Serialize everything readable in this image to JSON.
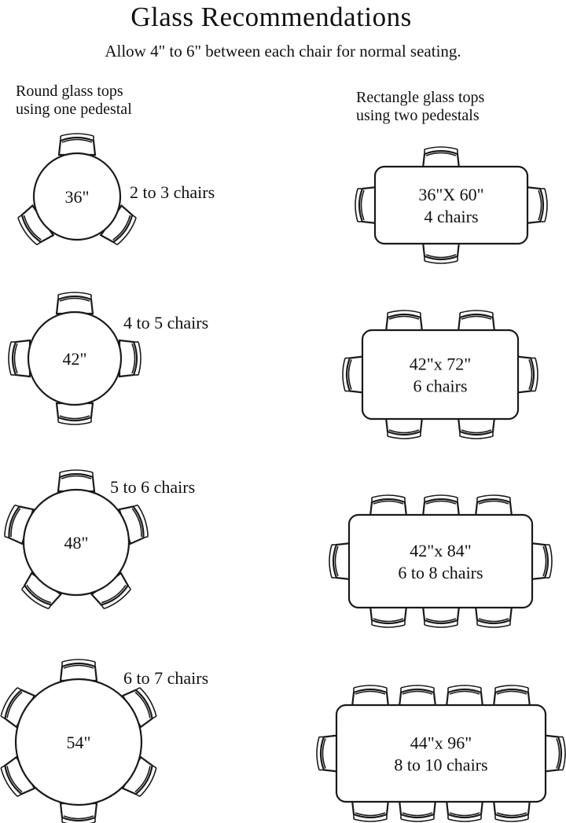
{
  "title": "Glass Recommendations",
  "subtitle": "Allow 4\" to 6\" between each chair for normal seating.",
  "round_heading": [
    "Round glass tops",
    "using one pedestal"
  ],
  "rect_heading": [
    "Rectangle glass tops",
    "using two pedestals"
  ],
  "round_tables": [
    {
      "size": "36\"",
      "chairs": "2 to 3 chairs"
    },
    {
      "size": "42\"",
      "chairs": "4 to 5 chairs"
    },
    {
      "size": "48\"",
      "chairs": "5 to 6 chairs"
    },
    {
      "size": "54\"",
      "chairs": "6 to 7 chairs"
    }
  ],
  "rect_tables": [
    {
      "size": "36\"X 60\"",
      "chairs": "4 chairs"
    },
    {
      "size": "42\"x 72\"",
      "chairs": "6 chairs"
    },
    {
      "size": "42\"x 84\"",
      "chairs": "6 to 8 chairs"
    },
    {
      "size": "44\"x 96\"",
      "chairs": "8 to 10 chairs"
    }
  ]
}
